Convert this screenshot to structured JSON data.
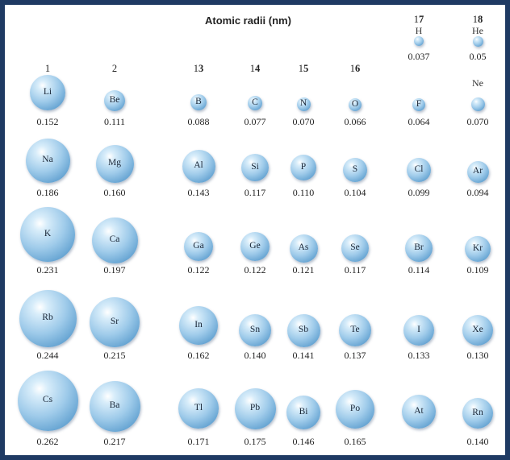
{
  "title": "Atomic radii (nm)",
  "groups": [
    {
      "prefix": "1",
      "bold": ""
    },
    {
      "prefix": "2",
      "bold": ""
    },
    {
      "prefix": "1",
      "bold": "3"
    },
    {
      "prefix": "1",
      "bold": "4"
    },
    {
      "prefix": "1",
      "bold": "5"
    },
    {
      "prefix": "1",
      "bold": "6"
    },
    {
      "prefix": "1",
      "bold": "7"
    },
    {
      "prefix": "1",
      "bold": "8"
    }
  ],
  "elements": [
    {
      "symbol": "H",
      "radius": "0.037"
    },
    {
      "symbol": "He",
      "radius": "0.05"
    },
    {
      "symbol": "Li",
      "radius": "0.152"
    },
    {
      "symbol": "Be",
      "radius": "0.111"
    },
    {
      "symbol": "B",
      "radius": "0.088"
    },
    {
      "symbol": "C",
      "radius": "0.077"
    },
    {
      "symbol": "N",
      "radius": "0.070"
    },
    {
      "symbol": "O",
      "radius": "0.066"
    },
    {
      "symbol": "F",
      "radius": "0.064"
    },
    {
      "symbol": "Ne",
      "radius": "0.070"
    },
    {
      "symbol": "Na",
      "radius": "0.186"
    },
    {
      "symbol": "Mg",
      "radius": "0.160"
    },
    {
      "symbol": "Al",
      "radius": "0.143"
    },
    {
      "symbol": "Si",
      "radius": "0.117"
    },
    {
      "symbol": "P",
      "radius": "0.110"
    },
    {
      "symbol": "S",
      "radius": "0.104"
    },
    {
      "symbol": "Cl",
      "radius": "0.099"
    },
    {
      "symbol": "Ar",
      "radius": "0.094"
    },
    {
      "symbol": "K",
      "radius": "0.231"
    },
    {
      "symbol": "Ca",
      "radius": "0.197"
    },
    {
      "symbol": "Ga",
      "radius": "0.122"
    },
    {
      "symbol": "Ge",
      "radius": "0.122"
    },
    {
      "symbol": "As",
      "radius": "0.121"
    },
    {
      "symbol": "Se",
      "radius": "0.117"
    },
    {
      "symbol": "Br",
      "radius": "0.114"
    },
    {
      "symbol": "Kr",
      "radius": "0.109"
    },
    {
      "symbol": "Rb",
      "radius": "0.244"
    },
    {
      "symbol": "Sr",
      "radius": "0.215"
    },
    {
      "symbol": "In",
      "radius": "0.162"
    },
    {
      "symbol": "Sn",
      "radius": "0.140"
    },
    {
      "symbol": "Sb",
      "radius": "0.141"
    },
    {
      "symbol": "Te",
      "radius": "0.137"
    },
    {
      "symbol": "I",
      "radius": "0.133"
    },
    {
      "symbol": "Xe",
      "radius": "0.130"
    },
    {
      "symbol": "Cs",
      "radius": "0.262"
    },
    {
      "symbol": "Ba",
      "radius": "0.217"
    },
    {
      "symbol": "Tl",
      "radius": "0.171"
    },
    {
      "symbol": "Pb",
      "radius": "0.175"
    },
    {
      "symbol": "Bi",
      "radius": "0.146"
    },
    {
      "symbol": "Po",
      "radius": "0.165"
    },
    {
      "symbol": "At",
      "radius": ""
    },
    {
      "symbol": "Rn",
      "radius": "0.140"
    }
  ],
  "colors": {
    "frame": "#1f3a63",
    "sphere": "#9fcbea",
    "sphere_dark": "#3f80b8"
  }
}
